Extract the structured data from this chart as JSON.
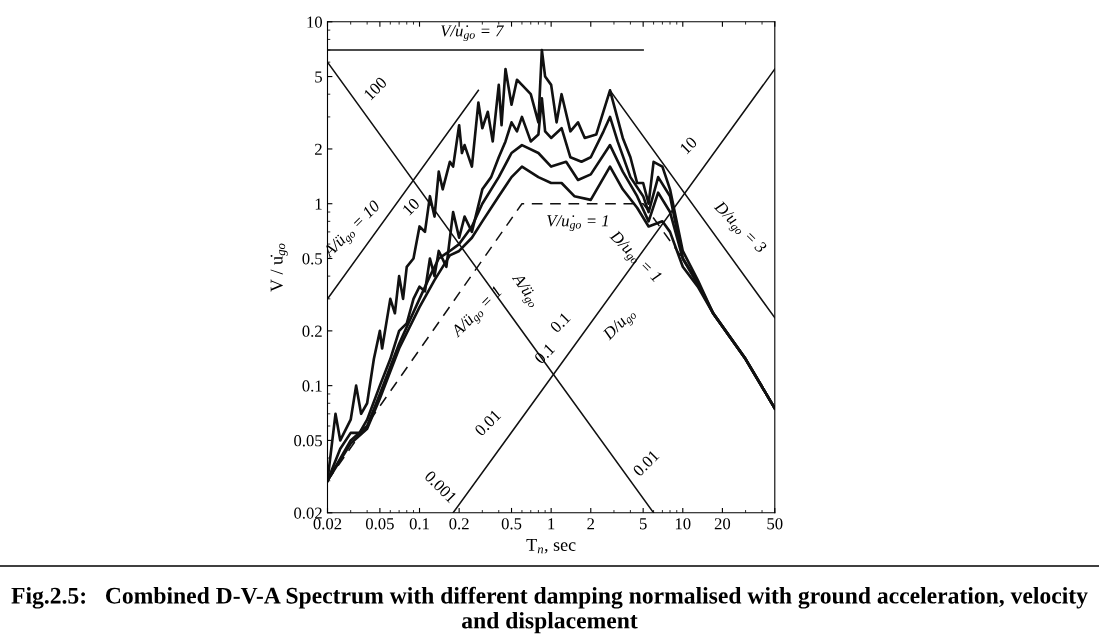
{
  "chart_data": {
    "type": "line",
    "title": "Fig.2.5:   Combined D-V-A Spectrum with different damping normalised with ground acceleration, velocity and displacement",
    "xlabel": "T$_{n}$, sec",
    "ylabel": "V / u̇$_{go}$",
    "log": "xy",
    "grid": false,
    "marker": "none",
    "xlim": [
      0.02,
      50
    ],
    "ylim": [
      0.02,
      10
    ],
    "xticks": [
      0.02,
      0.05,
      0.1,
      0.2,
      0.5,
      1,
      2,
      5,
      10,
      20,
      50
    ],
    "yticks": [
      0.02,
      0.05,
      0.1,
      0.2,
      0.5,
      1,
      2,
      5,
      10
    ],
    "series": [
      {
        "color": "#111111",
        "line_style": "solid",
        "x": [
          0.02,
          0.023,
          0.025,
          0.03,
          0.033,
          0.036,
          0.04,
          0.045,
          0.05,
          0.052,
          0.06,
          0.065,
          0.07,
          0.075,
          0.08,
          0.09,
          0.1,
          0.11,
          0.12,
          0.13,
          0.14,
          0.15,
          0.17,
          0.18,
          0.2,
          0.21,
          0.22,
          0.25,
          0.28,
          0.3,
          0.33,
          0.36,
          0.4,
          0.42,
          0.45,
          0.5,
          0.55,
          0.6,
          0.7,
          0.8,
          0.85,
          0.9,
          1.0,
          1.1,
          1.2,
          1.4,
          1.6,
          1.8,
          2.2,
          2.8,
          3.5,
          4,
          4.5,
          5,
          5.5,
          6,
          7,
          8,
          10,
          13,
          17,
          30,
          50
        ],
        "values": [
          0.03,
          0.07,
          0.05,
          0.065,
          0.1,
          0.07,
          0.08,
          0.14,
          0.2,
          0.16,
          0.3,
          0.25,
          0.4,
          0.3,
          0.45,
          0.5,
          0.75,
          0.7,
          1.1,
          0.85,
          1.5,
          1.2,
          1.7,
          1.6,
          2.7,
          1.9,
          2.1,
          1.6,
          3.6,
          2.6,
          3.2,
          2.2,
          4.5,
          2.7,
          5.5,
          3.5,
          4.8,
          4.5,
          4.0,
          2.8,
          7.0,
          5.0,
          4.5,
          2.8,
          4.0,
          2.5,
          2.8,
          2.3,
          2.4,
          4.2,
          2.3,
          1.8,
          1.3,
          1.3,
          1.0,
          1.7,
          1.6,
          1.2,
          0.55,
          0.38,
          0.25,
          0.14,
          0.075
        ]
      },
      {
        "color": "#111111",
        "line_style": "solid",
        "x": [
          0.02,
          0.025,
          0.03,
          0.035,
          0.04,
          0.05,
          0.06,
          0.07,
          0.08,
          0.09,
          0.1,
          0.11,
          0.12,
          0.13,
          0.14,
          0.16,
          0.18,
          0.2,
          0.22,
          0.25,
          0.3,
          0.35,
          0.4,
          0.45,
          0.5,
          0.55,
          0.6,
          0.7,
          0.8,
          0.85,
          0.9,
          1.0,
          1.2,
          1.4,
          1.7,
          2.0,
          2.5,
          2.8,
          3.2,
          4,
          5,
          5.5,
          6.5,
          8,
          10,
          13,
          17,
          30,
          50
        ],
        "values": [
          0.03,
          0.045,
          0.055,
          0.055,
          0.065,
          0.1,
          0.14,
          0.2,
          0.22,
          0.3,
          0.35,
          0.33,
          0.5,
          0.4,
          0.55,
          0.45,
          0.9,
          0.65,
          0.85,
          0.7,
          1.2,
          1.4,
          1.8,
          2.2,
          2.8,
          2.5,
          3.0,
          2.2,
          2.4,
          3.8,
          2.5,
          2.3,
          2.6,
          1.8,
          1.7,
          1.8,
          2.5,
          3.0,
          2.2,
          1.4,
          1.1,
          0.9,
          1.4,
          1.1,
          0.5,
          0.37,
          0.25,
          0.14,
          0.075
        ]
      },
      {
        "color": "#111111",
        "line_style": "solid",
        "x": [
          0.02,
          0.03,
          0.04,
          0.05,
          0.07,
          0.1,
          0.12,
          0.14,
          0.17,
          0.2,
          0.25,
          0.3,
          0.4,
          0.5,
          0.6,
          0.8,
          1.0,
          1.3,
          1.6,
          2.0,
          2.8,
          3.5,
          4.5,
          5.5,
          6.5,
          8,
          10,
          13,
          17,
          30,
          50
        ],
        "values": [
          0.03,
          0.05,
          0.06,
          0.09,
          0.17,
          0.3,
          0.4,
          0.5,
          0.55,
          0.6,
          0.75,
          1.0,
          1.4,
          1.9,
          2.1,
          1.9,
          1.6,
          1.7,
          1.35,
          1.45,
          2.1,
          1.5,
          1.1,
          0.8,
          1.15,
          0.9,
          0.5,
          0.36,
          0.25,
          0.14,
          0.075
        ]
      },
      {
        "color": "#111111",
        "line_style": "solid",
        "x": [
          0.02,
          0.03,
          0.04,
          0.05,
          0.07,
          0.1,
          0.13,
          0.17,
          0.2,
          0.25,
          0.3,
          0.4,
          0.5,
          0.6,
          0.8,
          1.0,
          1.2,
          1.5,
          2.0,
          2.8,
          3.5,
          4.5,
          5.5,
          7,
          8,
          10,
          13,
          17,
          30,
          50
        ],
        "values": [
          0.03,
          0.048,
          0.058,
          0.085,
          0.16,
          0.27,
          0.38,
          0.52,
          0.55,
          0.65,
          0.8,
          1.1,
          1.4,
          1.6,
          1.4,
          1.3,
          1.3,
          1.1,
          1.05,
          1.6,
          1.2,
          0.95,
          0.75,
          0.8,
          0.7,
          0.45,
          0.35,
          0.25,
          0.14,
          0.075
        ]
      },
      {
        "color": "#111111",
        "line_style": "dashed",
        "x": [
          0.02,
          0.6,
          5,
          10
        ],
        "values": [
          0.03,
          1.0,
          1.0,
          0.5
        ]
      },
      {
        "color": "#111111",
        "line_style": "solid",
        "x": [
          0.02,
          5
        ],
        "values": [
          7,
          7
        ]
      },
      {
        "color": "#111111",
        "line_style": "solid",
        "x": [
          0.02,
          0.28
        ],
        "values": [
          0.3,
          4.2
        ]
      },
      {
        "color": "#111111",
        "line_style": "solid",
        "x": [
          2.8,
          50
        ],
        "values": [
          4.2,
          0.236
        ]
      },
      {
        "color": "#111111",
        "line_style": "solid",
        "x": [
          0.02,
          6
        ],
        "values": [
          6,
          0.02
        ]
      },
      {
        "color": "#111111",
        "line_style": "solid",
        "x": [
          0.18,
          50
        ],
        "values": [
          0.02,
          5.5
        ]
      }
    ],
    "annotations": [
      {
        "text": "V/u̇$_{go}$ = 7",
        "x": 0.25,
        "y": 7
      },
      {
        "text": "V/u̇$_{go}$ = 1",
        "x": 1.6,
        "y": 1.0
      },
      {
        "text": "A/ü$_{go}$ = 10",
        "x": 0.04,
        "y": 0.6
      },
      {
        "text": "A/ü$_{go}$ = 1",
        "x": 0.2,
        "y": 0.322
      },
      {
        "text": "D/u$_{go}$ = 3",
        "x": 20,
        "y": 0.59
      },
      {
        "text": "D/u$_{go}$ = 1",
        "x": 7,
        "y": 0.714
      },
      {
        "text": "100",
        "x": 0.035,
        "y": 3.43
      },
      {
        "text": "10",
        "x": 0.12,
        "y": 1.0
      },
      {
        "text": "A/ü$_{go}$",
        "x": 0.45,
        "y": 0.267
      },
      {
        "text": "0.1",
        "x": 1.0,
        "y": 0.12
      },
      {
        "text": "0.01",
        "x": 4,
        "y": 0.03
      },
      {
        "text": "0.001",
        "x": 0.2,
        "y": 0.0222
      },
      {
        "text": "0.01",
        "x": 0.45,
        "y": 0.05
      },
      {
        "text": "0.1",
        "x": 1.6,
        "y": 0.178
      },
      {
        "text": "D/u$_{go}$",
        "x": 2.4,
        "y": 0.266
      },
      {
        "text": "10",
        "x": 15,
        "y": 1.67
      }
    ]
  }
}
